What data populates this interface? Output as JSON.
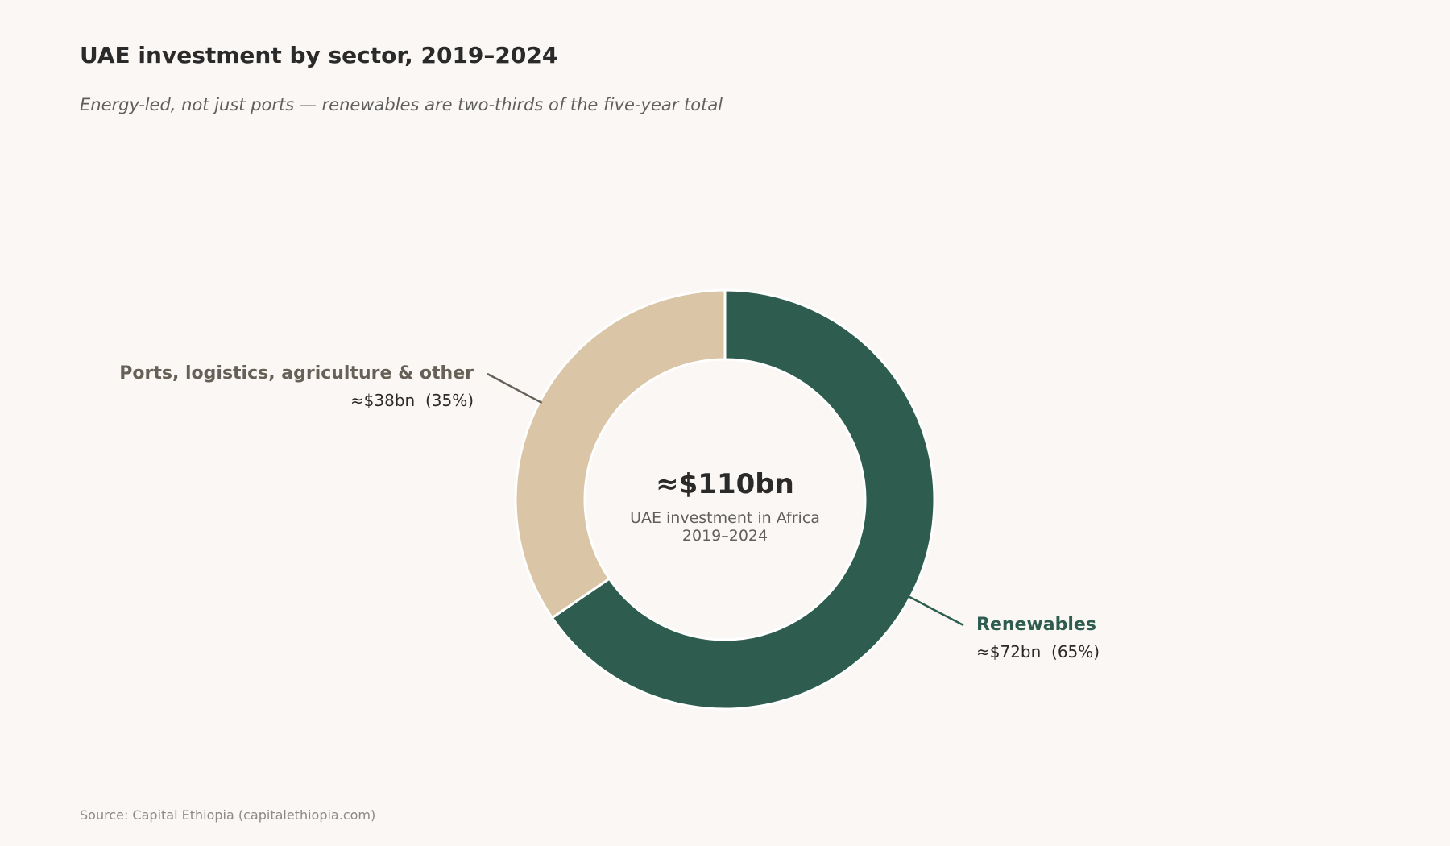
{
  "header": {
    "title": "UAE investment by sector, 2019–2024",
    "subtitle": "Energy-led, not just ports — renewables are two-thirds of the five-year total"
  },
  "footer": {
    "source": "Source: Capital Ethiopia (capitalethiopia.com)"
  },
  "chart_data": {
    "type": "pie",
    "variant": "donut",
    "center": {
      "value_label": "≈$110bn",
      "caption_line1": "UAE investment in Africa",
      "caption_line2": "2019–2024"
    },
    "slices": [
      {
        "name": "Renewables",
        "value": 72,
        "percent": 65,
        "value_label": "≈$72bn  (65%)",
        "color": "#2e5d50",
        "name_color": "#2e5d50"
      },
      {
        "name": "Ports, logistics, agriculture & other",
        "value": 38,
        "percent": 35,
        "value_label": "≈$38bn  (35%)",
        "color": "#dac6a7",
        "name_color": "#666057"
      }
    ],
    "legend": "none"
  },
  "colors": {
    "background": "#faf7f4",
    "title": "#2a2a2a",
    "subtitle": "#5f5f5f",
    "source": "#8a8a8a"
  }
}
